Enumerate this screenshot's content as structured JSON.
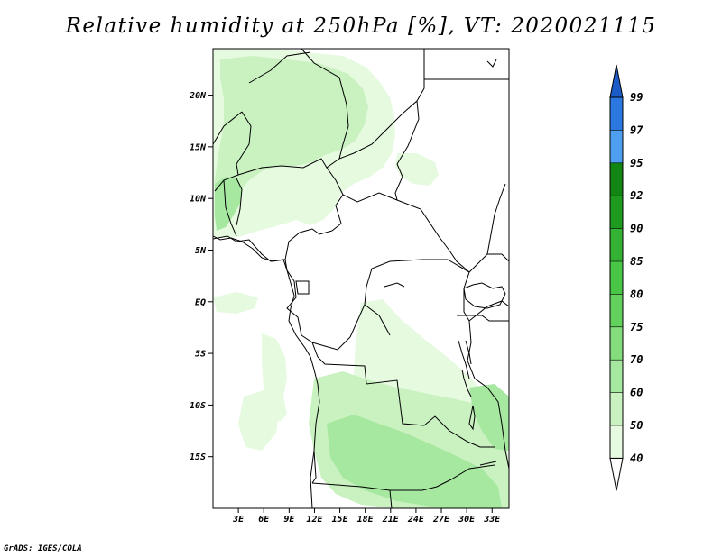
{
  "title": "Relative humidity at 250hPa [%], VT: 2020021115",
  "credit": "GrADS: IGES/COLA",
  "map": {
    "lon_range": [
      0,
      35
    ],
    "lat_range": [
      -20,
      24.5
    ],
    "lat_ticks": [
      {
        "value": 20,
        "label": "20N"
      },
      {
        "value": 15,
        "label": "15N"
      },
      {
        "value": 10,
        "label": "10N"
      },
      {
        "value": 5,
        "label": "5N"
      },
      {
        "value": 0,
        "label": "EQ"
      },
      {
        "value": -5,
        "label": "5S"
      },
      {
        "value": -10,
        "label": "10S"
      },
      {
        "value": -15,
        "label": "15S"
      }
    ],
    "lon_ticks": [
      {
        "value": 3,
        "label": "3E"
      },
      {
        "value": 6,
        "label": "6E"
      },
      {
        "value": 9,
        "label": "9E"
      },
      {
        "value": 12,
        "label": "12E"
      },
      {
        "value": 15,
        "label": "15E"
      },
      {
        "value": 18,
        "label": "18E"
      },
      {
        "value": 21,
        "label": "21E"
      },
      {
        "value": 24,
        "label": "24E"
      },
      {
        "value": 27,
        "label": "27E"
      },
      {
        "value": 30,
        "label": "30E"
      },
      {
        "value": 33,
        "label": "33E"
      }
    ]
  },
  "colorbar": {
    "labels": [
      "40",
      "50",
      "60",
      "70",
      "75",
      "80",
      "85",
      "90",
      "92",
      "95",
      "97",
      "99"
    ],
    "colors": [
      "#ffffff",
      "#e6fae0",
      "#c9f2c0",
      "#a6e8a0",
      "#84dc7c",
      "#62d15e",
      "#49c646",
      "#33b233",
      "#1e9a1e",
      "#138513",
      "#4f9ff0",
      "#2a78e0",
      "#1c5cc8"
    ]
  },
  "colors": {
    "frame": "#000000",
    "level_50": "#e6fae0",
    "level_60": "#c9f2c0",
    "level_70": "#a6e8a0",
    "level_75": "#84dc7c"
  }
}
